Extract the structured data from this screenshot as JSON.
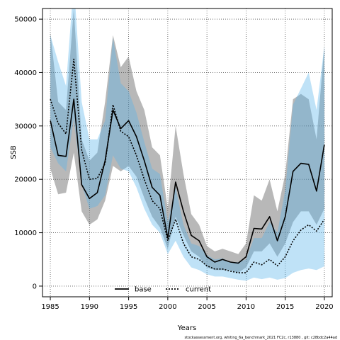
{
  "chart_data": {
    "type": "line",
    "xlabel": "Years",
    "ylabel": "SSB",
    "xlim": [
      1984,
      2021
    ],
    "ylim": [
      -2000,
      52000
    ],
    "xticks": [
      1985,
      1990,
      1995,
      2000,
      2005,
      2010,
      2015,
      2020
    ],
    "yticks": [
      0,
      10000,
      20000,
      30000,
      40000,
      50000
    ],
    "grid": true,
    "legend_position": "bottom-center",
    "footer": "stockassessment.org, whiting_6a_benchmark_2021 FC2c, r13880 , git: c28bdc2a44ad",
    "x": [
      1985,
      1986,
      1987,
      1988,
      1989,
      1990,
      1991,
      1992,
      1993,
      1994,
      1995,
      1996,
      1997,
      1998,
      1999,
      2000,
      2001,
      2002,
      2003,
      2004,
      2005,
      2006,
      2007,
      2008,
      2009,
      2010,
      2011,
      2012,
      2013,
      2014,
      2015,
      2016,
      2017,
      2018,
      2019,
      2020
    ],
    "series": [
      {
        "name": "base",
        "color": "#000000",
        "band_color": "#555555",
        "values": [
          31000,
          24500,
          24300,
          35000,
          19000,
          16400,
          17500,
          23500,
          33000,
          29500,
          31000,
          28000,
          23500,
          18500,
          17000,
          9000,
          19500,
          14000,
          9500,
          8500,
          5500,
          4500,
          5000,
          4500,
          4300,
          5500,
          10800,
          10700,
          13000,
          8500,
          13000,
          21500,
          23000,
          22800,
          17800,
          26500
        ],
        "lower": [
          22000,
          17200,
          17500,
          25000,
          14000,
          11500,
          12500,
          16000,
          22500,
          21500,
          22500,
          20500,
          16500,
          13000,
          11000,
          7000,
          13000,
          9500,
          6500,
          5500,
          3500,
          3000,
          3000,
          3000,
          2500,
          3500,
          6500,
          6500,
          8000,
          5500,
          8000,
          12000,
          14000,
          14000,
          11500,
          14500
        ],
        "upper": [
          47500,
          34500,
          33000,
          52000,
          27500,
          23500,
          25000,
          34500,
          47000,
          41000,
          43000,
          36500,
          33000,
          26000,
          24500,
          14500,
          30000,
          21000,
          13500,
          11500,
          7500,
          6500,
          7000,
          6500,
          6000,
          8000,
          17000,
          16000,
          20000,
          14000,
          21000,
          35000,
          36000,
          35000,
          27500,
          45000
        ]
      },
      {
        "name": "current",
        "color": "#000000",
        "band_color": "#56b4e9",
        "values": [
          35000,
          30500,
          28500,
          42500,
          25500,
          20000,
          20200,
          23000,
          34000,
          29000,
          28000,
          24500,
          20000,
          16000,
          14500,
          8500,
          12500,
          8000,
          5500,
          5000,
          3800,
          3200,
          3200,
          2800,
          2500,
          2500,
          4500,
          4000,
          5000,
          3800,
          5500,
          8500,
          10500,
          11500,
          10300,
          12500
        ],
        "lower": [
          26000,
          23000,
          21500,
          31500,
          19000,
          14500,
          15000,
          17000,
          24500,
          22000,
          21500,
          18500,
          14500,
          11500,
          10000,
          6000,
          8500,
          5500,
          3500,
          3000,
          2200,
          1800,
          1800,
          1500,
          1200,
          1000,
          1600,
          1300,
          1600,
          1200,
          1500,
          2500,
          3000,
          3300,
          3000,
          3700
        ],
        "upper": [
          47000,
          42000,
          37500,
          57000,
          34500,
          27500,
          27500,
          31000,
          46500,
          38000,
          36500,
          32500,
          27000,
          22000,
          21000,
          12000,
          18500,
          11500,
          8000,
          7500,
          5800,
          5000,
          5200,
          4500,
          4500,
          5000,
          9000,
          9000,
          12000,
          10000,
          18000,
          34000,
          37000,
          40000,
          33000,
          45000
        ]
      }
    ]
  }
}
